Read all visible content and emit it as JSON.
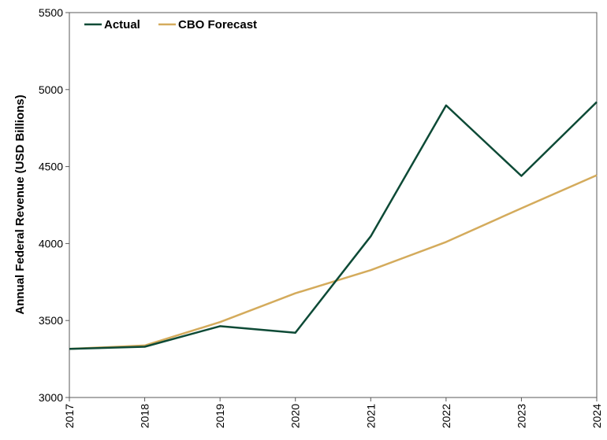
{
  "chart_data": {
    "type": "line",
    "title": "",
    "xlabel": "",
    "ylabel": "Annual Federal Revenue (USD Billions)",
    "x": [
      "2017",
      "2018",
      "2019",
      "2020",
      "2021",
      "2022",
      "2023",
      "2024"
    ],
    "ylim": [
      3000,
      5500
    ],
    "yticks": [
      "3000",
      "3500",
      "4000",
      "4500",
      "5000",
      "5500"
    ],
    "grid": false,
    "legend": "top-left",
    "series": [
      {
        "name": "Actual",
        "color": "#0d4a36",
        "values": [
          3316,
          3330,
          3463,
          3421,
          4047,
          4897,
          4439,
          4919
        ]
      },
      {
        "name": "CBO Forecast",
        "color": "#d4ab5c",
        "values": [
          3316,
          3338,
          3490,
          3677,
          3827,
          4010,
          4229,
          4444
        ]
      }
    ]
  }
}
